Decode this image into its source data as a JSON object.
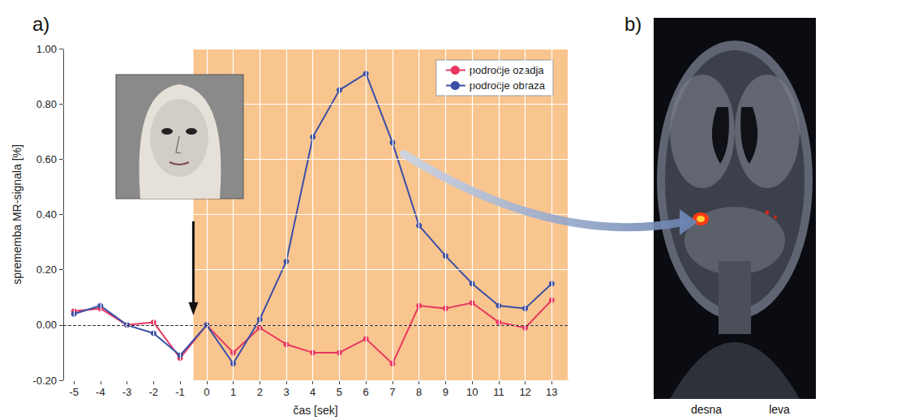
{
  "chart_data": {
    "type": "line",
    "panel": "a)",
    "x": [
      -5,
      -4,
      -3,
      -2,
      -1,
      0,
      1,
      2,
      3,
      4,
      5,
      6,
      7,
      8,
      9,
      10,
      11,
      12,
      13
    ],
    "series": [
      {
        "name": "področje ozadja",
        "color": "#e8365f",
        "values": [
          0.05,
          0.06,
          0.0,
          0.01,
          -0.12,
          0.0,
          -0.1,
          -0.01,
          -0.07,
          -0.1,
          -0.1,
          -0.05,
          -0.14,
          0.07,
          0.06,
          0.08,
          0.01,
          -0.01,
          0.09
        ]
      },
      {
        "name": "področje obraza",
        "color": "#3a4ea6",
        "values": [
          0.04,
          0.07,
          0.0,
          -0.03,
          -0.11,
          0.0,
          -0.14,
          0.02,
          0.23,
          0.68,
          0.85,
          0.91,
          0.66,
          0.36,
          0.25,
          0.15,
          0.07,
          0.06,
          0.15
        ]
      }
    ],
    "xlabel": "čas [sek]",
    "ylabel": "sprememba MR-signala [%]",
    "xlim": [
      -5.4,
      13.6
    ],
    "xticks": [
      -5,
      -4,
      -3,
      -2,
      -1,
      0,
      1,
      2,
      3,
      4,
      5,
      6,
      7,
      8,
      9,
      10,
      11,
      12,
      13
    ],
    "ylim": [
      -0.2,
      1.0
    ],
    "yticks": [
      {
        "value": -0.2,
        "label": "-0.20"
      },
      {
        "value": 0,
        "label": "0.00"
      },
      {
        "value": 0.2,
        "label": "0.20"
      },
      {
        "value": 0.4,
        "label": "0.40"
      },
      {
        "value": 0.6,
        "label": "0.60"
      },
      {
        "value": 0.8,
        "label": "0.80"
      },
      {
        "value": 1.0,
        "label": "1.00"
      }
    ],
    "grid": true,
    "legend": "upper right",
    "marker": "circle",
    "line_style": "solid",
    "shaded_from": -0.5,
    "hline": 0
  },
  "image_panel": {
    "panel": "b)",
    "labels": [
      "desna",
      "leva"
    ]
  }
}
